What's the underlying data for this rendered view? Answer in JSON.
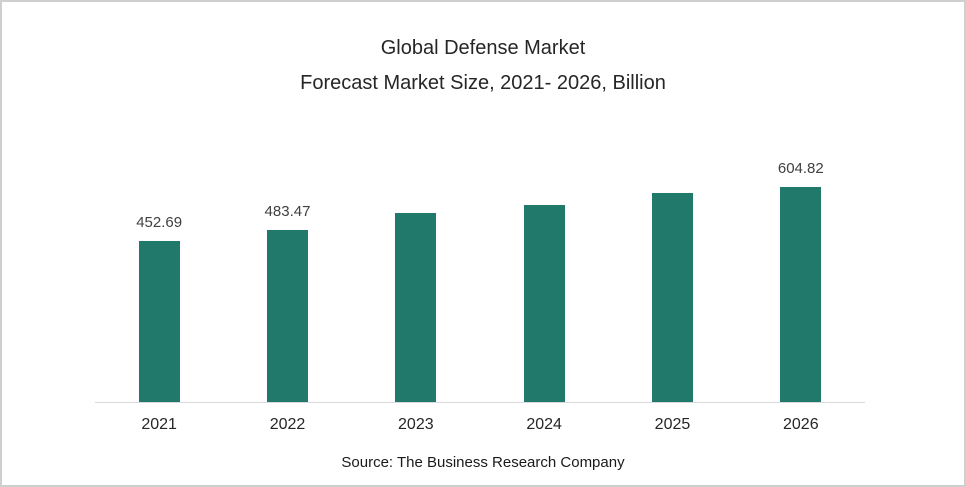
{
  "title": {
    "line1": "Global Defense Market",
    "line2": "Forecast Market Size, 2021- 2026, Billion"
  },
  "source_text": "Source: The Business Research Company",
  "colors": {
    "bar": "#21796B",
    "axis_line": "#D9D9D9",
    "frame_border": "#CFCFCF",
    "title_text": "#262626",
    "data_label_text": "#404040"
  },
  "chart_data": {
    "type": "bar",
    "title": "Global Defense Market Forecast Market Size, 2021- 2026, Billion",
    "categories": [
      "2021",
      "2022",
      "2023",
      "2024",
      "2025",
      "2026"
    ],
    "values": [
      452.69,
      483.47,
      531,
      554,
      587,
      604.82
    ],
    "data_labels": [
      "452.69",
      "483.47",
      "",
      "",
      "",
      "604.82"
    ],
    "values_estimated_from_pixels": [
      false,
      false,
      true,
      true,
      true,
      false
    ],
    "unit": "Billion",
    "xlabel": "",
    "ylabel": "",
    "ylim": [
      0,
      700
    ],
    "grid": false,
    "legend": false,
    "x_axis_line": true,
    "source": "Source: The Business Research Company"
  }
}
